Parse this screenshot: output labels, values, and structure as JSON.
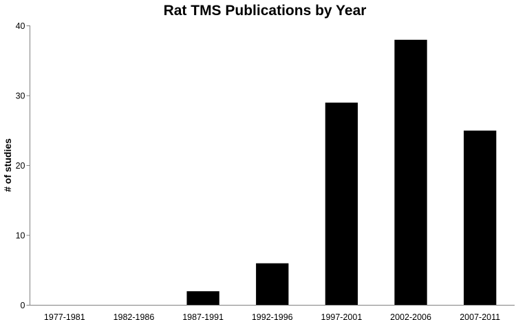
{
  "chart_data": {
    "type": "bar",
    "title": "Rat TMS Publications by Year",
    "xlabel": "",
    "ylabel": "# of studies",
    "categories": [
      "1977-1981",
      "1982-1986",
      "1987-1991",
      "1992-1996",
      "1997-2001",
      "2002-2006",
      "2007-2011"
    ],
    "values": [
      0,
      0,
      2,
      6,
      29,
      38,
      25
    ],
    "ylim": [
      0,
      40
    ],
    "yticks": [
      0,
      10,
      20,
      30,
      40
    ],
    "grid": false,
    "legend": "none",
    "bar_color": "#000000"
  }
}
